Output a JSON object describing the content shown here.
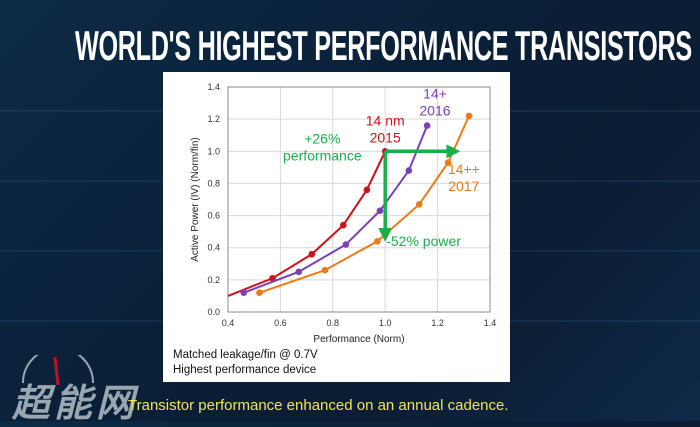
{
  "slide": {
    "title": "WORLD'S HIGHEST PERFORMANCE TRANSISTORS",
    "caption": "Transistor performance enhanced on an annual cadence.",
    "notes": [
      "Matched leakage/fin @ 0.7V",
      "Highest performance device"
    ],
    "watermark": "超能网"
  },
  "chart_data": {
    "type": "line",
    "xlabel": "Performance (Norm)",
    "ylabel": "Active Power (IV) (Norm/fin)",
    "xlim": [
      0.4,
      1.4
    ],
    "ylim": [
      0.0,
      1.4
    ],
    "xticks": [
      "0.4",
      "0.6",
      "0.8",
      "1.0",
      "1.2",
      "1.4"
    ],
    "yticks": [
      "0.0",
      "0.2",
      "0.4",
      "0.6",
      "0.8",
      "1.0",
      "1.2",
      "1.4"
    ],
    "grid": true,
    "series": [
      {
        "name": "14 nm 2015",
        "label_lines": [
          "14 nm",
          "2015"
        ],
        "color": "#d0111b",
        "x": [
          0.4,
          0.57,
          0.72,
          0.84,
          0.93,
          1.0
        ],
        "y": [
          0.1,
          0.21,
          0.36,
          0.54,
          0.76,
          1.0
        ]
      },
      {
        "name": "14+ 2016",
        "label_lines": [
          "14+",
          "2016"
        ],
        "color": "#7a3fb8",
        "x": [
          0.46,
          0.67,
          0.85,
          0.98,
          1.09,
          1.16
        ],
        "y": [
          0.12,
          0.25,
          0.42,
          0.63,
          0.88,
          1.16
        ]
      },
      {
        "name": "14++ 2017",
        "label_lines": [
          "14++",
          "2017"
        ],
        "color": "#ee7a16",
        "x": [
          0.52,
          0.77,
          0.97,
          1.13,
          1.24,
          1.32
        ],
        "y": [
          0.12,
          0.26,
          0.44,
          0.67,
          0.93,
          1.22
        ]
      }
    ],
    "annotations": [
      {
        "text_lines": [
          "+26%",
          "performance"
        ],
        "color": "#19b04a",
        "arrow": {
          "from": [
            1.0,
            1.0
          ],
          "to": [
            1.26,
            1.0
          ]
        }
      },
      {
        "text_lines": [
          "-52% power"
        ],
        "color": "#19b04a",
        "arrow": {
          "from": [
            1.0,
            1.0
          ],
          "to": [
            1.0,
            0.48
          ]
        }
      }
    ]
  }
}
